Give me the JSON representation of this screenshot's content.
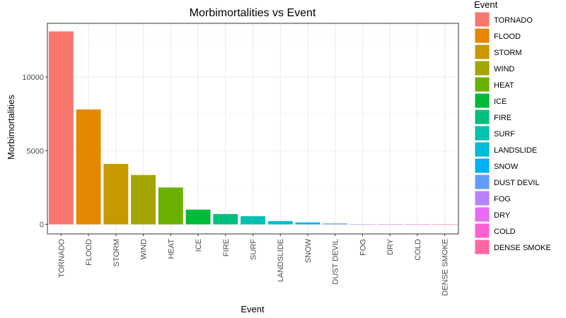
{
  "chart_data": {
    "type": "bar",
    "title": "Morbimortalities vs Event",
    "xlabel": "Event",
    "ylabel": "Morbimortalities",
    "ylim": [
      -650,
      13650
    ],
    "yticks": [
      0,
      5000,
      10000
    ],
    "grid": true,
    "legend_title": "Event",
    "legend_position": "right",
    "categories": [
      "TORNADO",
      "FLOOD",
      "STORM",
      "WIND",
      "HEAT",
      "ICE",
      "FIRE",
      "SURF",
      "LANDSLIDE",
      "SNOW",
      "DUST DEVIL",
      "FOG",
      "DRY",
      "COLD",
      "DENSE SMOKE"
    ],
    "values": [
      13100,
      7800,
      4100,
      3350,
      2500,
      1000,
      700,
      550,
      220,
      130,
      60,
      15,
      8,
      5,
      3
    ],
    "colors": [
      "#F8766D",
      "#E58700",
      "#C99800",
      "#A3A500",
      "#6BB100",
      "#00BA38",
      "#00BF7D",
      "#00C0AF",
      "#00BCD8",
      "#00B0F6",
      "#619CFF",
      "#B983FF",
      "#E76BF3",
      "#FD61D1",
      "#FF67A4"
    ]
  }
}
